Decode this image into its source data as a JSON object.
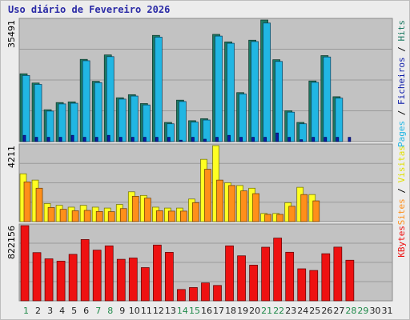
{
  "chart_data": {
    "type": "bar",
    "title": "Uso diário de Fevereiro 2026",
    "days": [
      "1",
      "2",
      "3",
      "4",
      "5",
      "6",
      "7",
      "8",
      "9",
      "10",
      "11",
      "12",
      "13",
      "14",
      "15",
      "16",
      "17",
      "18",
      "19",
      "20",
      "21",
      "22",
      "23",
      "24",
      "25",
      "26",
      "27",
      "28",
      "29",
      "30",
      "31"
    ],
    "weekend_days": [
      "1",
      "7",
      "8",
      "14",
      "15",
      "21",
      "22",
      "28",
      "29"
    ],
    "panels": [
      {
        "id": "top",
        "max_label": "35491",
        "ymax": 35491,
        "series": [
          {
            "name": "Pages",
            "values": [
              6500,
              4500,
              4500,
              4500,
              6500,
              4500,
              4500,
              6500,
              4500,
              4500,
              4500,
              4500,
              4500,
              1500,
              4500,
              2500,
              4500,
              6500,
              4500,
              4500,
              4500,
              9000,
              4500,
              2000,
              4500,
              4500,
              4500,
              4500,
              null,
              null,
              null
            ]
          },
          {
            "name": "Ficheiros",
            "values": [
              19300,
              16700,
              8900,
              11000,
              11200,
              23600,
              17200,
              24800,
              12400,
              13300,
              10700,
              30500,
              5200,
              11700,
              5700,
              6300,
              30800,
              28700,
              13900,
              29200,
              34600,
              23400,
              8600,
              5200,
              17300,
              24700,
              12700,
              null,
              null,
              null,
              null
            ]
          },
          {
            "name": "Hits",
            "values": [
              19800,
              17100,
              9300,
              11400,
              11600,
              24000,
              17600,
              25300,
              12800,
              13700,
              11100,
              31000,
              5600,
              12100,
              6100,
              6700,
              31300,
              29100,
              14300,
              29600,
              35491,
              23900,
              9000,
              5600,
              17700,
              25100,
              13100,
              null,
              null,
              null,
              null
            ]
          }
        ],
        "legend": [
          {
            "text": "Pages",
            "color": "#21b6e3"
          },
          {
            "text": "Ficheiros",
            "color": "#0a1aa8"
          },
          {
            "text": "Hits",
            "color": "#1d7a63"
          }
        ]
      },
      {
        "id": "mid",
        "max_label": "4211",
        "ymax": 4211,
        "series": [
          {
            "name": "Sites",
            "values": [
              2200,
              1850,
              780,
              680,
              600,
              620,
              560,
              550,
              720,
              1400,
              1300,
              600,
              580,
              580,
              1050,
              2900,
              2300,
              2000,
              1700,
              1550,
              400,
              400,
              850,
              1500,
              1150,
              null,
              null,
              null,
              null,
              null,
              null
            ]
          },
          {
            "name": "Visitas",
            "values": [
              2650,
              2300,
              1000,
              900,
              800,
              900,
              800,
              750,
              950,
              1650,
              1450,
              800,
              750,
              750,
              1250,
              3450,
              4211,
              2150,
              2000,
              1850,
              450,
              450,
              1050,
              1900,
              1500,
              null,
              null,
              null,
              null,
              null,
              null
            ]
          }
        ],
        "legend": [
          {
            "text": "Sites",
            "color": "#ff8f1a"
          },
          {
            "text": "Visitas",
            "color": "#e0e000"
          }
        ]
      },
      {
        "id": "bottom",
        "max_label": "822156",
        "ymax": 822156,
        "series": [
          {
            "name": "KBytes",
            "values": [
              822156,
              527000,
              459000,
              434000,
              508000,
              670000,
              554000,
              601000,
              454000,
              468000,
              363000,
              610000,
              530000,
              124000,
              145000,
              196000,
              168000,
              601000,
              492000,
              390000,
              586000,
              686000,
              531000,
              350000,
              332000,
              515000,
              587000,
              444000,
              null,
              null,
              null
            ]
          }
        ],
        "legend": [
          {
            "text": "KBytes",
            "color": "#ee1111"
          }
        ]
      }
    ]
  }
}
